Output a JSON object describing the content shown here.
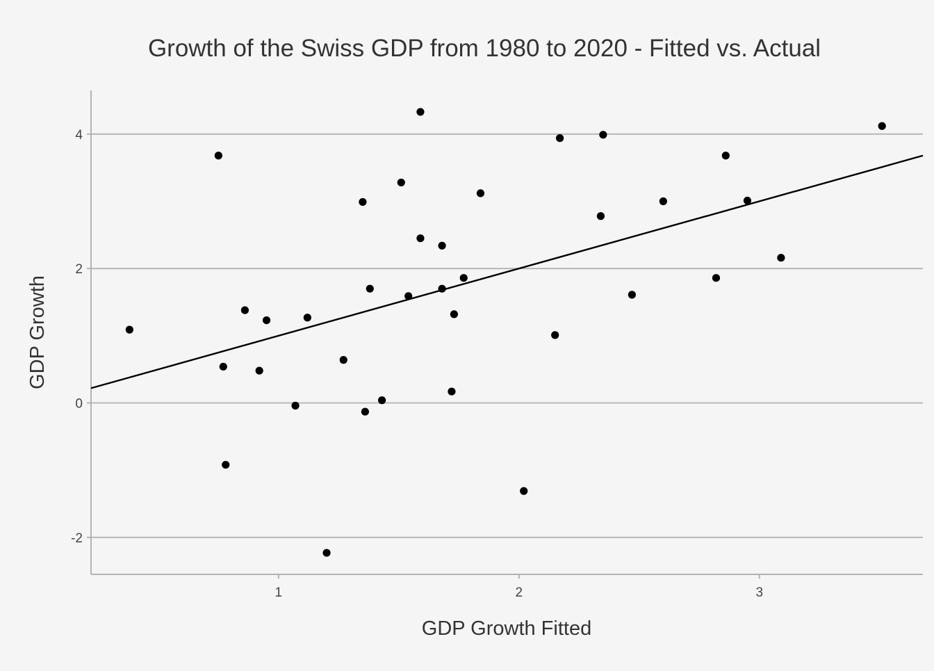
{
  "chart_data": {
    "type": "scatter",
    "title": "Growth of the Swiss GDP from 1980 to 2020 - Fitted vs. Actual",
    "xlabel": "GDP Growth Fitted",
    "ylabel": "GDP Growth",
    "xlim": [
      0.22,
      3.68
    ],
    "ylim": [
      -2.55,
      4.65
    ],
    "x_ticks": [
      1,
      2,
      3
    ],
    "x_tick_labels": [
      "1",
      "2",
      "3"
    ],
    "y_ticks": [
      -2,
      0,
      2,
      4
    ],
    "y_tick_labels": [
      "-2",
      "0",
      "2",
      "4"
    ],
    "grid": "horizontal",
    "legend": "none",
    "colors": {
      "background": "#f5f5f5",
      "points": "#000000",
      "line": "#000000",
      "grid": "#b3b3b3",
      "axis": "#b3b3b3",
      "text": "#333333"
    },
    "fit_line": {
      "x": [
        0.22,
        3.68
      ],
      "y": [
        0.22,
        3.68
      ]
    },
    "points": [
      {
        "x": 0.38,
        "y": 1.09
      },
      {
        "x": 0.75,
        "y": 3.68
      },
      {
        "x": 0.77,
        "y": 0.54
      },
      {
        "x": 0.78,
        "y": -0.92
      },
      {
        "x": 0.86,
        "y": 1.38
      },
      {
        "x": 0.92,
        "y": 0.48
      },
      {
        "x": 0.95,
        "y": 1.23
      },
      {
        "x": 1.07,
        "y": -0.04
      },
      {
        "x": 1.12,
        "y": 1.27
      },
      {
        "x": 1.2,
        "y": -2.23
      },
      {
        "x": 1.27,
        "y": 0.64
      },
      {
        "x": 1.35,
        "y": 2.99
      },
      {
        "x": 1.36,
        "y": -0.13
      },
      {
        "x": 1.38,
        "y": 1.7
      },
      {
        "x": 1.43,
        "y": 0.04
      },
      {
        "x": 1.51,
        "y": 3.28
      },
      {
        "x": 1.54,
        "y": 1.59
      },
      {
        "x": 1.59,
        "y": 4.33
      },
      {
        "x": 1.59,
        "y": 2.45
      },
      {
        "x": 1.68,
        "y": 2.34
      },
      {
        "x": 1.68,
        "y": 1.7
      },
      {
        "x": 1.72,
        "y": 0.17
      },
      {
        "x": 1.73,
        "y": 1.32
      },
      {
        "x": 1.77,
        "y": 1.86
      },
      {
        "x": 1.84,
        "y": 3.12
      },
      {
        "x": 2.02,
        "y": -1.31
      },
      {
        "x": 2.15,
        "y": 1.01
      },
      {
        "x": 2.17,
        "y": 3.94
      },
      {
        "x": 2.34,
        "y": 2.78
      },
      {
        "x": 2.35,
        "y": 3.99
      },
      {
        "x": 2.47,
        "y": 1.61
      },
      {
        "x": 2.6,
        "y": 3.0
      },
      {
        "x": 2.82,
        "y": 1.86
      },
      {
        "x": 2.86,
        "y": 3.68
      },
      {
        "x": 2.95,
        "y": 3.01
      },
      {
        "x": 3.09,
        "y": 2.16
      },
      {
        "x": 3.51,
        "y": 4.12
      }
    ]
  }
}
